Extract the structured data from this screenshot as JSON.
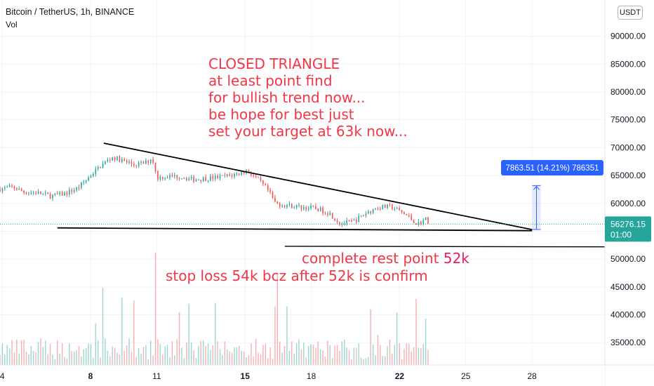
{
  "header": {
    "title": "Bitcoin / TetherUS, 1h, BINANCE",
    "indicator": "Vol"
  },
  "currency_button": "USDT",
  "colors": {
    "up": "#26a69a",
    "down": "#ef5350",
    "annotation": "#f23645",
    "highlight": "#e91e63",
    "measure": "#2962ff",
    "price_tag": "#26a69a",
    "line": "#000000"
  },
  "chart_data": {
    "type": "candlestick",
    "title": "Bitcoin / TetherUS, 1h, BINANCE",
    "y_ticks": [
      "35000.00",
      "40000.00",
      "45000.00",
      "50000.00",
      "55000.00",
      "60000.00",
      "65000.00",
      "70000.00",
      "75000.00",
      "80000.00",
      "85000.00",
      "90000.00"
    ],
    "ylim": [
      31000,
      96500
    ],
    "x_ticks": [
      {
        "label": "4",
        "day": 4
      },
      {
        "label": "8",
        "day": 8
      },
      {
        "label": "11",
        "day": 11
      },
      {
        "label": "15",
        "day": 15
      },
      {
        "label": "18",
        "day": 18
      },
      {
        "label": "22",
        "day": 22
      },
      {
        "label": "25",
        "day": 25
      },
      {
        "label": "28",
        "day": 28
      }
    ],
    "bold_x_ticks": [
      "8",
      "15",
      "22"
    ],
    "xlim_day": [
      3.9,
      31.3
    ],
    "last_price": "56276.15",
    "countdown": "01:00",
    "price_path": [
      [
        3.9,
        62600
      ],
      [
        4.5,
        62900
      ],
      [
        5.0,
        62000
      ],
      [
        5.6,
        61900
      ],
      [
        6.2,
        61300
      ],
      [
        6.8,
        61700
      ],
      [
        7.4,
        62700
      ],
      [
        7.8,
        64200
      ],
      [
        8.2,
        65800
      ],
      [
        8.6,
        67200
      ],
      [
        9.0,
        68300
      ],
      [
        9.5,
        67600
      ],
      [
        10.0,
        66900
      ],
      [
        10.5,
        67300
      ],
      [
        10.8,
        68200
      ],
      [
        11.0,
        64600
      ],
      [
        11.3,
        64800
      ],
      [
        12.0,
        64900
      ],
      [
        12.6,
        64300
      ],
      [
        13.3,
        64500
      ],
      [
        14.0,
        64800
      ],
      [
        14.6,
        65200
      ],
      [
        15.1,
        65900
      ],
      [
        15.6,
        64200
      ],
      [
        16.0,
        62500
      ],
      [
        16.4,
        59900
      ],
      [
        17.0,
        59600
      ],
      [
        17.6,
        59300
      ],
      [
        18.2,
        59100
      ],
      [
        18.8,
        58300
      ],
      [
        19.3,
        56400
      ],
      [
        19.9,
        56700
      ],
      [
        20.5,
        58300
      ],
      [
        21.0,
        59300
      ],
      [
        21.6,
        59400
      ],
      [
        22.0,
        58600
      ],
      [
        22.4,
        57600
      ],
      [
        22.8,
        56300
      ],
      [
        23.2,
        57200
      ],
      [
        23.4,
        56276
      ]
    ],
    "triangle_upper": {
      "from": [
        8.6,
        70800
      ],
      "to": [
        28.0,
        55300
      ]
    },
    "triangle_lower": {
      "from": [
        6.5,
        55600
      ],
      "to": [
        28.0,
        55100
      ]
    },
    "support_line": {
      "from": [
        16.8,
        52300
      ],
      "to": [
        31.3,
        52200
      ]
    },
    "measure": {
      "x_day": 28.2,
      "from": 55300,
      "to": 63200,
      "label": "7863.51 (14.21%) 786351"
    },
    "annotations": {
      "main": [
        "CLOSED TRIANGLE",
        "at least point find",
        "for bullish trend now...",
        "be hope for best just",
        "set your target at 63k now..."
      ],
      "rest_prefix": "complete rest point ",
      "rest_value": "52k",
      "stop": "stop loss 54k bcz after 52k is confirm"
    }
  }
}
